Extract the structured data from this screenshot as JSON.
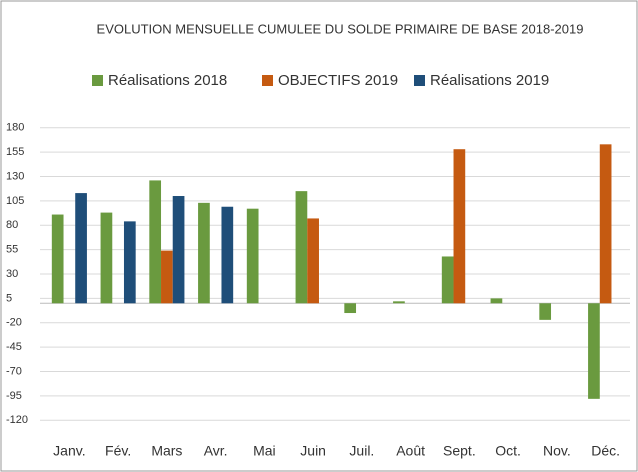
{
  "chart_data": {
    "type": "bar",
    "title": "EVOLUTION MENSUELLE CUMULEE DU SOLDE PRIMAIRE DE BASE 2018-2019",
    "categories": [
      "Janv.",
      "Fév.",
      "Mars",
      "Avr.",
      "Mai",
      "Juin",
      "Juil.",
      "Août",
      "Sept.",
      "Oct.",
      "Nov.",
      "Déc."
    ],
    "series": [
      {
        "name": "Réalisations 2018",
        "color": "#6a9a3f",
        "values": [
          91,
          93,
          126,
          103,
          97,
          115,
          -10,
          2,
          48,
          5,
          -17,
          -98
        ]
      },
      {
        "name": "OBJECTIFS 2019",
        "color": "#c55a11",
        "values": [
          null,
          null,
          54,
          null,
          null,
          87,
          null,
          null,
          158,
          null,
          null,
          163
        ]
      },
      {
        "name": "Réalisations 2019",
        "color": "#1f4e79",
        "values": [
          113,
          84,
          110,
          99,
          null,
          null,
          null,
          null,
          null,
          null,
          null,
          null
        ]
      }
    ],
    "ylim": [
      -132,
      190
    ],
    "yticks": [
      180,
      155,
      130,
      105,
      80,
      55,
      30,
      5,
      -20,
      -45,
      -70,
      -95,
      -120
    ],
    "grid": true
  }
}
